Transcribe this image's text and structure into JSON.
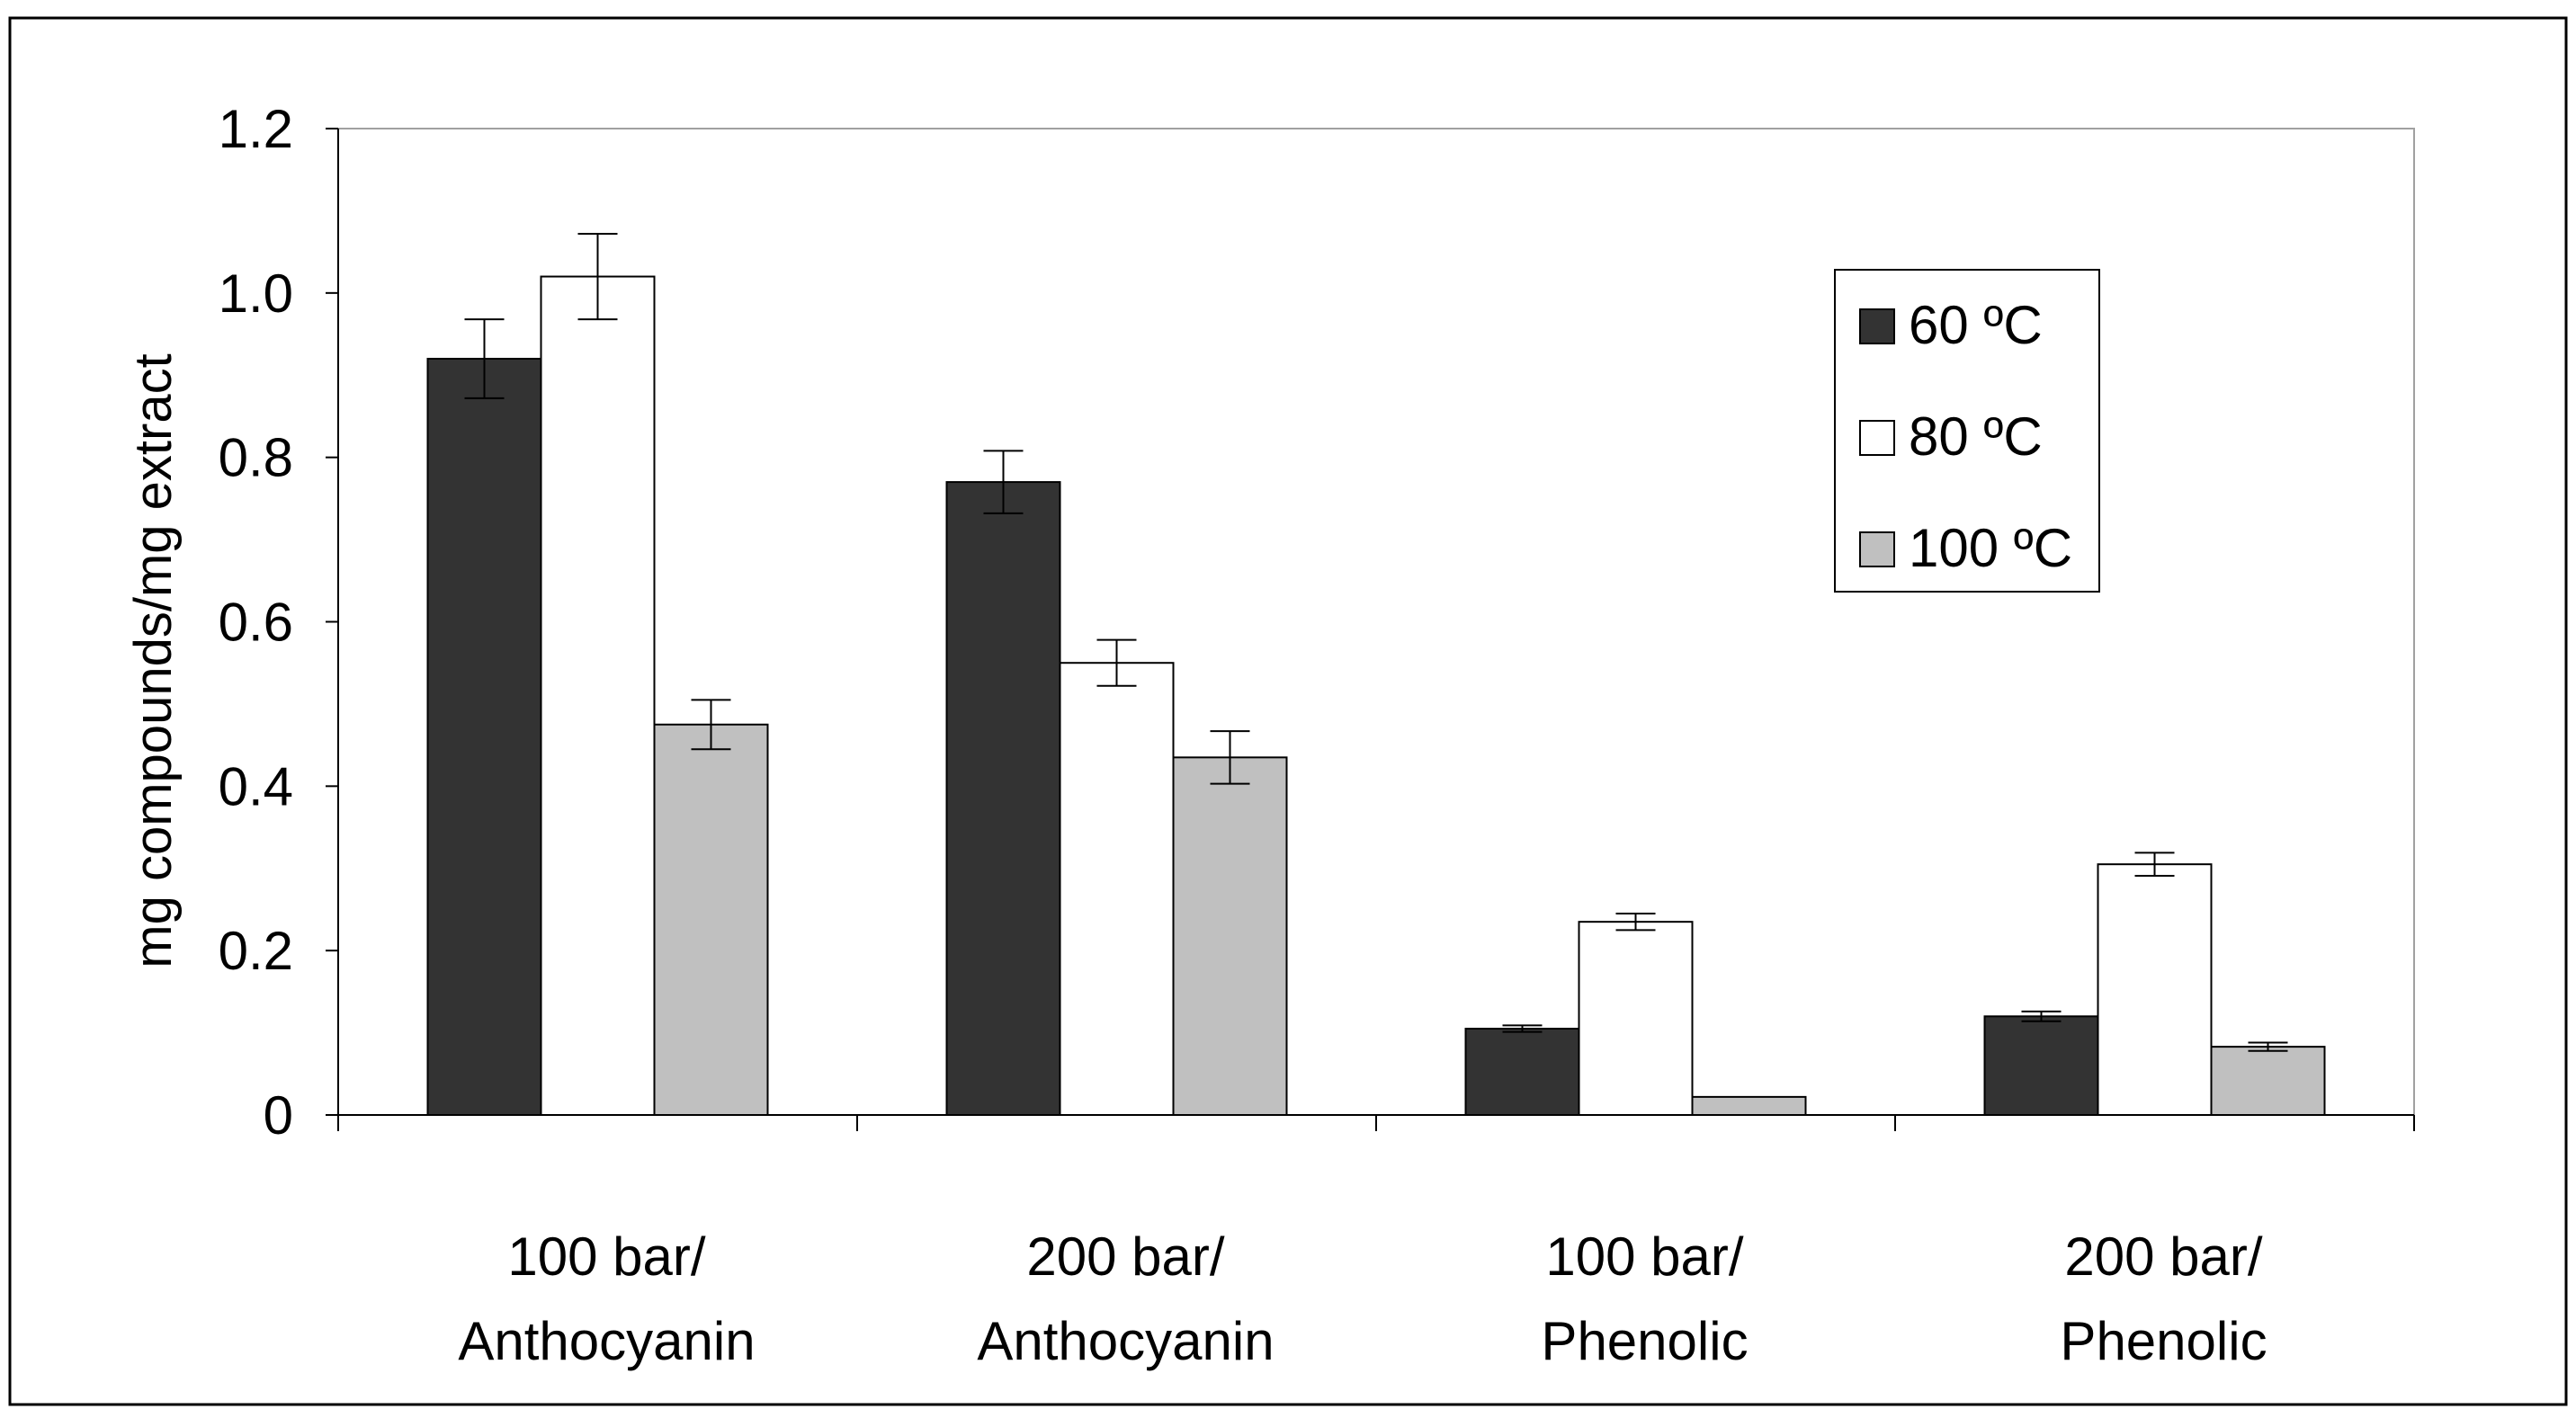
{
  "chart_data": {
    "type": "bar",
    "title": "",
    "xlabel": "",
    "ylabel": "mg compounds/mg extract",
    "ylim": [
      0,
      1.2
    ],
    "yticks": [
      "0",
      "0.2",
      "0.4",
      "0.6",
      "0.8",
      "1.0",
      "1.2"
    ],
    "categories": [
      [
        "100 bar/",
        "Anthocyanin"
      ],
      [
        "200 bar/",
        "Anthocyanin"
      ],
      [
        "100 bar/",
        "Phenolic"
      ],
      [
        "200 bar/",
        "Phenolic"
      ]
    ],
    "series": [
      {
        "name": "60 ºC",
        "color": "#333333",
        "values": [
          0.92,
          0.77,
          0.105,
          0.12
        ],
        "errors": [
          0.048,
          0.038,
          0.004,
          0.006
        ]
      },
      {
        "name": "80 ºC",
        "color": "#ffffff",
        "values": [
          1.02,
          0.55,
          0.235,
          0.305
        ],
        "errors": [
          0.052,
          0.028,
          0.01,
          0.014
        ]
      },
      {
        "name": "100 ºC",
        "color": "#c0c0c0",
        "values": [
          0.475,
          0.435,
          0.022,
          0.083
        ],
        "errors": [
          0.03,
          0.032,
          0.0,
          0.005
        ]
      }
    ],
    "grid": false,
    "legend_position": "top-right"
  }
}
